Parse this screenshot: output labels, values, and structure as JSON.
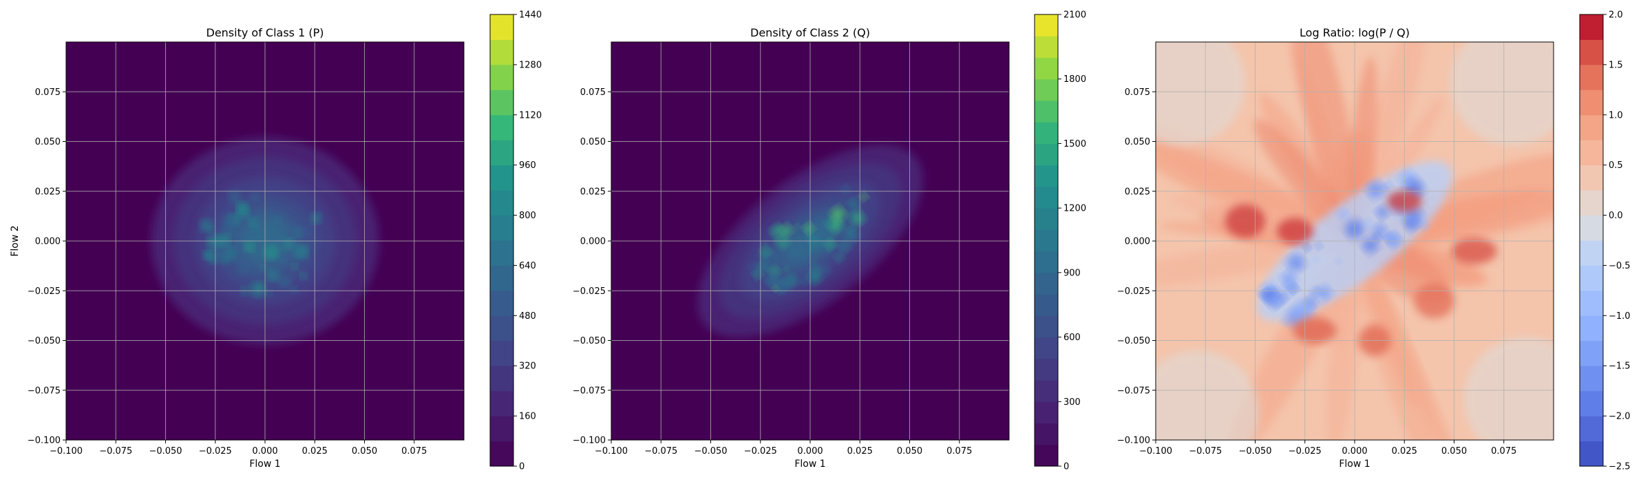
{
  "chart_data": [
    {
      "type": "heatmap",
      "title": "Density of Class 1 (P)",
      "xlabel": "Flow 1",
      "ylabel": "Flow 2",
      "xlim": [
        -0.1,
        0.1
      ],
      "ylim": [
        -0.1,
        0.1
      ],
      "xticks": [
        -0.1,
        -0.075,
        -0.05,
        -0.025,
        0.0,
        0.025,
        0.05,
        0.075
      ],
      "xtick_labels": [
        "−0.100",
        "−0.075",
        "−0.050",
        "−0.025",
        "0.000",
        "0.025",
        "0.050",
        "0.075"
      ],
      "yticks": [
        -0.1,
        -0.075,
        -0.05,
        -0.025,
        0.0,
        0.025,
        0.05,
        0.075
      ],
      "ytick_labels": [
        "−0.100",
        "−0.075",
        "−0.050",
        "−0.025",
        "0.000",
        "0.025",
        "0.050",
        "0.075"
      ],
      "grid": true,
      "colormap": "viridis",
      "colorbar": {
        "min": 0,
        "max": 1440,
        "ticks": [
          0,
          160,
          320,
          480,
          640,
          800,
          960,
          1120,
          1280,
          1440
        ],
        "tick_labels": [
          "0",
          "160",
          "320",
          "480",
          "640",
          "800",
          "960",
          "1120",
          "1280",
          "1440"
        ],
        "levels": 18
      },
      "density_blob": {
        "center": [
          0.0,
          0.0
        ],
        "sigma": [
          0.022,
          0.02
        ],
        "rotation_deg": 0,
        "peak": 1440
      }
    },
    {
      "type": "heatmap",
      "title": "Density of Class 2 (Q)",
      "xlabel": "Flow 1",
      "ylabel": "",
      "xlim": [
        -0.1,
        0.1
      ],
      "ylim": [
        -0.1,
        0.1
      ],
      "xticks": [
        -0.1,
        -0.075,
        -0.05,
        -0.025,
        0.0,
        0.025,
        0.05,
        0.075
      ],
      "xtick_labels": [
        "−0.100",
        "−0.075",
        "−0.050",
        "−0.025",
        "0.000",
        "0.025",
        "0.050",
        "0.075"
      ],
      "yticks": [
        -0.1,
        -0.075,
        -0.05,
        -0.025,
        0.0,
        0.025,
        0.05,
        0.075
      ],
      "ytick_labels": [
        "−0.100",
        "−0.075",
        "−0.050",
        "−0.025",
        "0.000",
        "0.025",
        "0.050",
        "0.075"
      ],
      "grid": true,
      "colormap": "viridis",
      "colorbar": {
        "min": 0,
        "max": 2100,
        "ticks": [
          0,
          300,
          600,
          900,
          1200,
          1500,
          1800,
          2100
        ],
        "tick_labels": [
          "0",
          "300",
          "600",
          "900",
          "1200",
          "1500",
          "1800",
          "2100"
        ],
        "levels": 21
      },
      "density_blob": {
        "center": [
          0.0,
          0.0
        ],
        "sigma": [
          0.026,
          0.012
        ],
        "rotation_deg": -38,
        "peak": 2100
      }
    },
    {
      "type": "heatmap",
      "title": "Log Ratio: log(P / Q)",
      "xlabel": "Flow 1",
      "ylabel": "",
      "xlim": [
        -0.1,
        0.1
      ],
      "ylim": [
        -0.1,
        0.1
      ],
      "xticks": [
        -0.1,
        -0.075,
        -0.05,
        -0.025,
        0.0,
        0.025,
        0.05,
        0.075
      ],
      "xtick_labels": [
        "−0.100",
        "−0.075",
        "−0.050",
        "−0.025",
        "0.000",
        "0.025",
        "0.050",
        "0.075"
      ],
      "yticks": [
        -0.1,
        -0.075,
        -0.05,
        -0.025,
        0.0,
        0.025,
        0.05,
        0.075
      ],
      "ytick_labels": [
        "−0.100",
        "−0.075",
        "−0.050",
        "−0.025",
        "0.000",
        "0.025",
        "0.050",
        "0.075"
      ],
      "grid": true,
      "colormap": "coolwarm",
      "colorbar": {
        "min": -2.5,
        "max": 2.0,
        "ticks": [
          -2.5,
          -2.0,
          -1.5,
          -1.0,
          -0.5,
          0.0,
          0.5,
          1.0,
          1.5,
          2.0
        ],
        "tick_labels": [
          "−2.5",
          "−2.0",
          "−1.5",
          "−1.0",
          "−0.5",
          "0.0",
          "0.5",
          "1.0",
          "1.5",
          "2.0"
        ],
        "levels": 18
      },
      "ratio_field": {
        "background": 0.5,
        "negative_band_rotation_deg": -38,
        "negative_min": -2.0,
        "positive_max": 1.7
      }
    }
  ]
}
